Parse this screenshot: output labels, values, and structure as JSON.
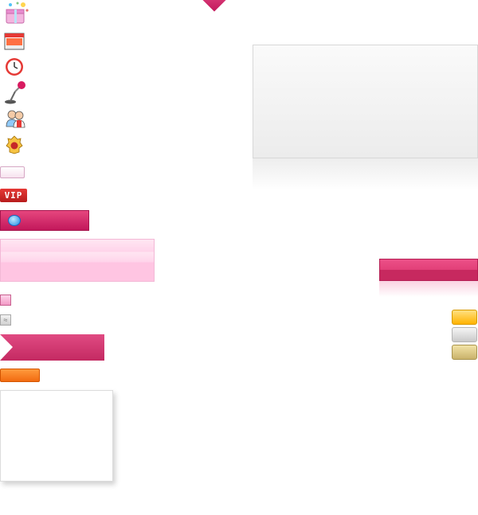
{
  "sprite_sheet": {
    "icons": [
      {
        "name": "gift-party-icon"
      },
      {
        "name": "calendar-icon"
      },
      {
        "name": "clock-icon"
      },
      {
        "name": "microphone-icon"
      },
      {
        "name": "users-icon"
      },
      {
        "name": "emblem-icon"
      }
    ],
    "vip_badge": {
      "label": "VIP"
    },
    "small_gray_square": {
      "glyph": "≈"
    },
    "colors": {
      "brand_pink": "#e23f78",
      "dark_pink": "#c2185b",
      "orange": "#f26b11",
      "gold": "#ffb300",
      "silver": "#c9c9c9",
      "bronze": "#c9b26b"
    }
  }
}
